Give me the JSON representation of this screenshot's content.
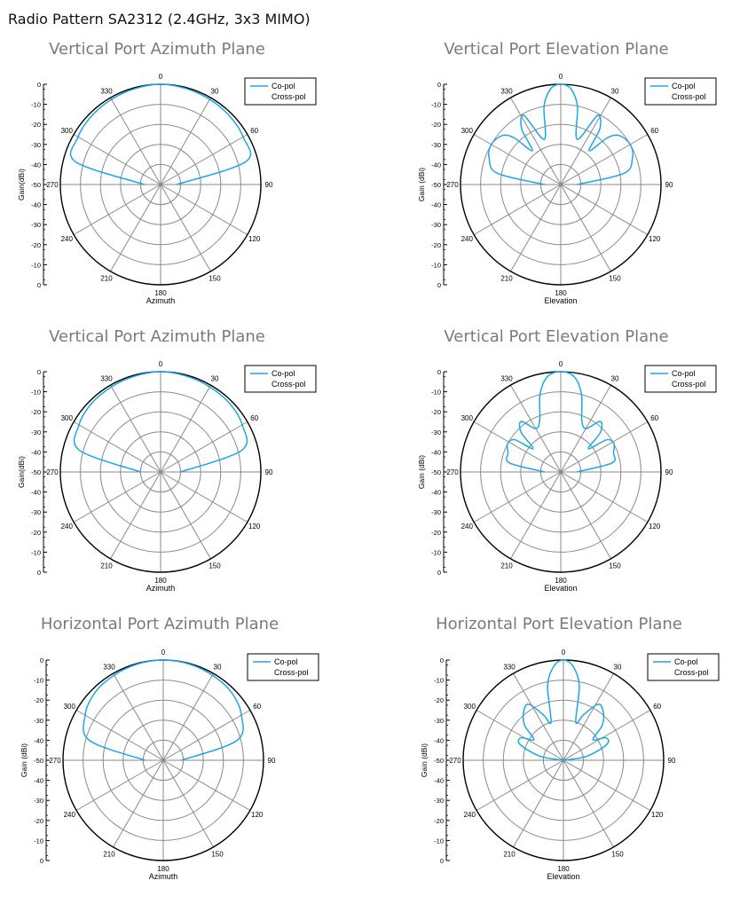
{
  "page": {
    "title": "Radio Pattern SA2312 (2.4GHz, 3x3 MIMO)"
  },
  "colors": {
    "copol": "#1ca7e6",
    "grid": "#8a8a8a",
    "frame": "#000000"
  },
  "chart_data": [
    {
      "type": "polar-line",
      "title": "Vertical Port Azimuth Plane",
      "xlabel": "Azimuth",
      "ylabel": "Gain(dBi)",
      "ylim": [
        -50,
        0
      ],
      "radial_ticks": [
        0,
        -10,
        -20,
        -30,
        -40,
        -50,
        -40,
        -30,
        -20,
        -10,
        0
      ],
      "angle_ticks": [
        "0",
        "30",
        "60",
        "90",
        "120",
        "150",
        "180",
        "210",
        "240",
        "270",
        "300",
        "330"
      ],
      "legend": [
        "Co-pol",
        "Cross-pol"
      ],
      "series": [
        {
          "name": "Co-pol",
          "angles": [
            -90,
            -75,
            -60,
            -45,
            -30,
            -15,
            0,
            15,
            30,
            45,
            60,
            75,
            90
          ],
          "values": [
            -42,
            -6,
            -2.5,
            -1.5,
            -1,
            -0.5,
            0,
            -0.5,
            -1,
            -1.5,
            -2.5,
            -6,
            -42
          ]
        }
      ]
    },
    {
      "type": "polar-line",
      "title": "Vertical Port Elevation Plane",
      "xlabel": "Elevation",
      "ylabel": "Gain (dBi)",
      "ylim": [
        -50,
        0
      ],
      "radial_ticks": [
        0,
        -10,
        -20,
        -30,
        -40,
        -50,
        -40,
        -30,
        -20,
        -10,
        0
      ],
      "angle_ticks": [
        "0",
        "30",
        "60",
        "90",
        "120",
        "150",
        "180",
        "210",
        "240",
        "270",
        "300",
        "330"
      ],
      "legend": [
        "Co-pol",
        "Cross-pol"
      ],
      "series": [
        {
          "name": "Co-pol",
          "angles": [
            -90,
            -80,
            -70,
            -60,
            -50,
            -45,
            -40,
            -35,
            -28,
            -20,
            -12,
            -6,
            0,
            6,
            12,
            20,
            28,
            35,
            40,
            45,
            50,
            60,
            70,
            80,
            90
          ],
          "values": [
            -42,
            -18,
            -12,
            -10,
            -12,
            -17,
            -28,
            -16,
            -11,
            -26,
            -10,
            -2,
            0,
            -2,
            -10,
            -26,
            -11,
            -16,
            -28,
            -17,
            -12,
            -10,
            -12,
            -18,
            -42
          ]
        }
      ]
    },
    {
      "type": "polar-line",
      "title": "Vertical Port Azimuth Plane",
      "xlabel": "Azimuth",
      "ylabel": "Gain(dBi)",
      "ylim": [
        -50,
        0
      ],
      "radial_ticks": [
        0,
        -10,
        -20,
        -30,
        -40,
        -50,
        -40,
        -30,
        -20,
        -10,
        0
      ],
      "angle_ticks": [
        "0",
        "30",
        "60",
        "90",
        "120",
        "150",
        "180",
        "210",
        "240",
        "270",
        "300",
        "330"
      ],
      "legend": [
        "Co-pol",
        "Cross-pol"
      ],
      "series": [
        {
          "name": "Co-pol",
          "angles": [
            -90,
            -75,
            -60,
            -45,
            -30,
            -15,
            0,
            15,
            30,
            45,
            60,
            75,
            90
          ],
          "values": [
            -40,
            -8,
            -3,
            -1.5,
            -1,
            -0.5,
            0,
            -0.5,
            -1,
            -1.5,
            -3,
            -8,
            -40
          ]
        }
      ]
    },
    {
      "type": "polar-line",
      "title": "Vertical Port Elevation Plane",
      "xlabel": "Elevation",
      "ylabel": "Gain (dBi)",
      "ylim": [
        -50,
        0
      ],
      "radial_ticks": [
        0,
        -10,
        -20,
        -30,
        -40,
        -50,
        -40,
        -30,
        -20,
        -10,
        0
      ],
      "angle_ticks": [
        "0",
        "30",
        "60",
        "90",
        "120",
        "150",
        "180",
        "210",
        "240",
        "270",
        "300",
        "330"
      ],
      "legend": [
        "Co-pol",
        "Cross-pol"
      ],
      "series": [
        {
          "name": "Co-pol",
          "angles": [
            -90,
            -80,
            -70,
            -62,
            -55,
            -50,
            -45,
            -38,
            -30,
            -22,
            -15,
            -8,
            0,
            8,
            15,
            22,
            30,
            38,
            45,
            50,
            55,
            62,
            70,
            80,
            90
          ],
          "values": [
            -42,
            -24,
            -22,
            -20,
            -22,
            -32,
            -22,
            -18,
            -25,
            -22,
            -10,
            -2,
            0,
            -2,
            -10,
            -22,
            -25,
            -18,
            -22,
            -32,
            -22,
            -20,
            -22,
            -24,
            -42
          ]
        }
      ]
    },
    {
      "type": "polar-line",
      "title": "Horizontal Port Azimuth Plane",
      "xlabel": "Azimuth",
      "ylabel": "Gain (dBi)",
      "ylim": [
        -50,
        0
      ],
      "radial_ticks": [
        0,
        -10,
        -20,
        -30,
        -40,
        -50,
        -40,
        -30,
        -20,
        -10,
        0
      ],
      "angle_ticks": [
        "0",
        "30",
        "60",
        "90",
        "120",
        "150",
        "180",
        "210",
        "240",
        "270",
        "300",
        "330"
      ],
      "legend": [
        "Co-pol",
        "Cross-pol"
      ],
      "series": [
        {
          "name": "Co-pol",
          "angles": [
            -90,
            -75,
            -60,
            -45,
            -30,
            -15,
            0,
            15,
            30,
            45,
            60,
            75,
            90
          ],
          "values": [
            -41,
            -12,
            -5,
            -2,
            -1,
            -0.3,
            0,
            -0.3,
            -1,
            -2,
            -5,
            -12,
            -41
          ]
        }
      ]
    },
    {
      "type": "polar-line",
      "title": "Horizontal Port Elevation Plane",
      "xlabel": "Elevation",
      "ylabel": "Gain (dBi)",
      "ylim": [
        -50,
        0
      ],
      "radial_ticks": [
        0,
        -10,
        -20,
        -30,
        -40,
        -50,
        -40,
        -30,
        -20,
        -10,
        0
      ],
      "angle_ticks": [
        "0",
        "30",
        "60",
        "90",
        "120",
        "150",
        "180",
        "210",
        "240",
        "270",
        "300",
        "330"
      ],
      "legend": [
        "Co-pol",
        "Cross-pol"
      ],
      "series": [
        {
          "name": "Co-pol",
          "angles": [
            -90,
            -80,
            -70,
            -62,
            -55,
            -48,
            -40,
            -32,
            -24,
            -18,
            -12,
            -6,
            0,
            6,
            12,
            18,
            24,
            32,
            40,
            48,
            55,
            62,
            70,
            80,
            90
          ],
          "values": [
            -50,
            -38,
            -27,
            -26,
            -32,
            -24,
            -19,
            -17,
            -25,
            -30,
            -12,
            -3,
            0,
            -3,
            -12,
            -30,
            -25,
            -17,
            -19,
            -24,
            -32,
            -26,
            -27,
            -38,
            -50
          ]
        }
      ]
    }
  ]
}
